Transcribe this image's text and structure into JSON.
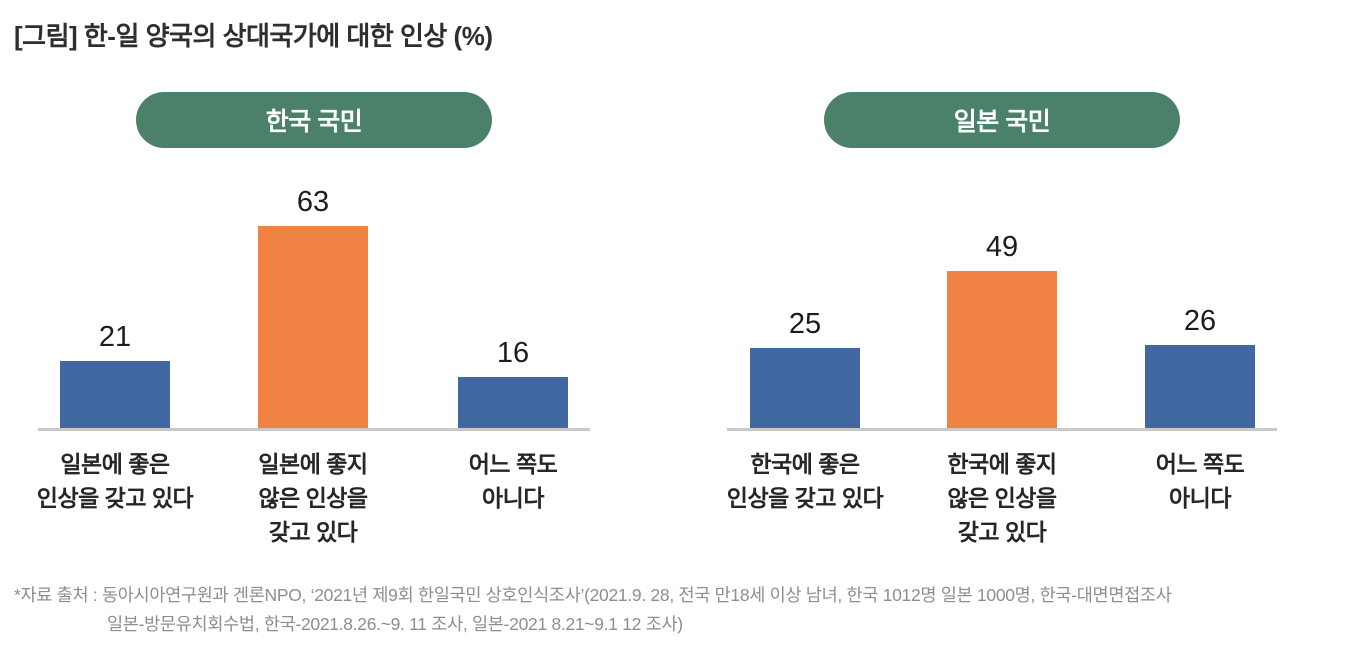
{
  "title": "[그림] 한-일 양국의 상대국가에 대한 인상 (%)",
  "colors": {
    "blue": "#4268A1",
    "orange": "#F08343",
    "green": "#4A8168",
    "axis": "#C9C9C9"
  },
  "chart_data": [
    {
      "type": "bar",
      "group": "한국 국민",
      "categories": [
        "일본에 좋은\n인상을 갖고 있다",
        "일본에 좋지\n않은 인상을\n갖고 있다",
        "어느 쪽도\n아니다"
      ],
      "values": [
        21,
        63,
        16
      ],
      "unit": "%",
      "bar_colors": [
        "blue",
        "orange",
        "blue"
      ],
      "ylim": [
        0,
        70
      ],
      "grid": false,
      "legend": false
    },
    {
      "type": "bar",
      "group": "일본 국민",
      "categories": [
        "한국에 좋은\n인상을 갖고 있다",
        "한국에 좋지\n않은 인상을\n갖고 있다",
        "어느 쪽도\n아니다"
      ],
      "values": [
        25,
        49,
        26
      ],
      "unit": "%",
      "bar_colors": [
        "blue",
        "orange",
        "blue"
      ],
      "ylim": [
        0,
        70
      ],
      "grid": false,
      "legend": false
    }
  ],
  "footnote": {
    "line1": "*자료 출처 : 동아시아연구원과 겐론NPO, ‘2021년 제9회 한일국민 상호인식조사’(2021.9. 28, 전국 만18세 이상 남녀, 한국 1012명 일본 1000명, 한국-대면면접조사",
    "line2": "일본-방문유치회수법, 한국-2021.8.26.~9. 11 조사, 일본-2021 8.21~9.1 12 조사)"
  }
}
